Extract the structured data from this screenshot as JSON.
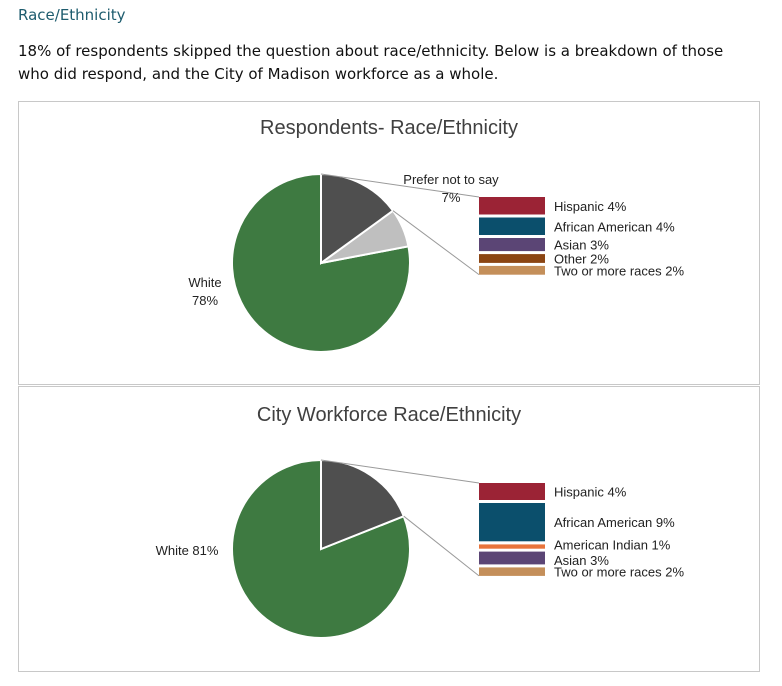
{
  "section": {
    "heading": "Race/Ethnicity",
    "intro": "18% of respondents skipped the question about race/ethnicity. Below is a breakdown of those who did respond, and the City of Madison workforce as a whole."
  },
  "chart_data": [
    {
      "type": "pie",
      "subtype": "pie-of-bar",
      "title": "Respondents- Race/Ethnicity",
      "pie": [
        {
          "label": "White",
          "value": "78%",
          "pct": 78,
          "color": "#3e7a41"
        },
        {
          "label": "Prefer not to say",
          "value": "7%",
          "pct": 7,
          "color": "#bfbfbf"
        },
        {
          "label": "",
          "value": "",
          "pct": 15,
          "color": "#4f4f4f",
          "breakout": true
        }
      ],
      "breakdown": [
        {
          "label": "Hispanic 4%",
          "pct": 4,
          "color": "#9b2335"
        },
        {
          "label": "African American 4%",
          "pct": 4,
          "color": "#0b4f6c"
        },
        {
          "label": "Asian 3%",
          "pct": 3,
          "color": "#5b4575"
        },
        {
          "label": "Other 2%",
          "pct": 2,
          "color": "#8b4513"
        },
        {
          "label": "Two or more races 2%",
          "pct": 2,
          "color": "#c48f5a"
        }
      ]
    },
    {
      "type": "pie",
      "subtype": "pie-of-bar",
      "title": "City Workforce Race/Ethnicity",
      "pie": [
        {
          "label": "White 81%",
          "value": "",
          "pct": 81,
          "color": "#3e7a41"
        },
        {
          "label": "",
          "value": "",
          "pct": 19,
          "color": "#4f4f4f",
          "breakout": true
        }
      ],
      "breakdown": [
        {
          "label": "Hispanic 4%",
          "pct": 4,
          "color": "#9b2335"
        },
        {
          "label": "African American 9%",
          "pct": 9,
          "color": "#0b4f6c"
        },
        {
          "label": "American Indian 1%",
          "pct": 1,
          "color": "#e8743b"
        },
        {
          "label": "Asian 3%",
          "pct": 3,
          "color": "#5b4575"
        },
        {
          "label": "Two or more races 2%",
          "pct": 2,
          "color": "#c48f5a"
        }
      ]
    }
  ]
}
